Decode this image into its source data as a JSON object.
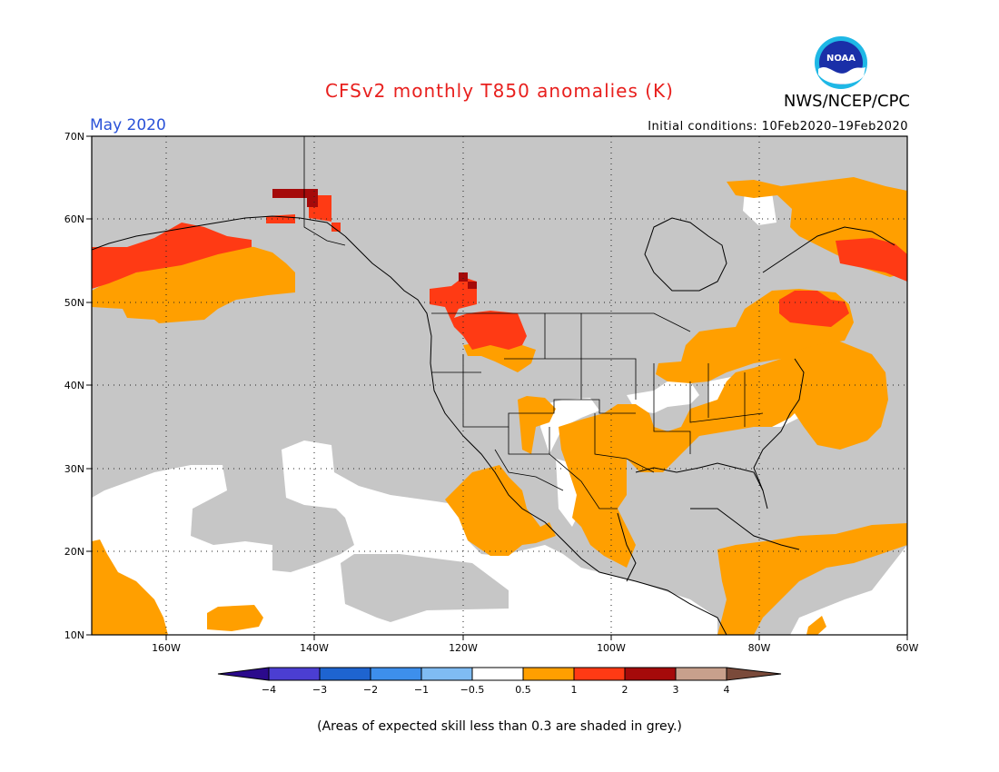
{
  "title": "CFSv2 monthly T850 anomalies (K)",
  "agency": "NWS/NCEP/CPC",
  "logo_text": "NOAA",
  "valid_month": "May 2020",
  "initial_conditions": "Initial conditions: 10Feb2020–19Feb2020",
  "footnote": "(Areas of expected skill less than 0.3 are shaded in grey.)",
  "map": {
    "lon_labels": [
      "160W",
      "140W",
      "120W",
      "100W",
      "80W",
      "60W"
    ],
    "lat_labels": [
      "70N",
      "60N",
      "50N",
      "40N",
      "30N",
      "20N",
      "10N"
    ],
    "lon_range": [
      -170,
      -60
    ],
    "lat_range": [
      10,
      70
    ],
    "grey_color": "#c6c6c6"
  },
  "colorbar": {
    "labels": [
      "−4",
      "−3",
      "−2",
      "−1",
      "−0.5",
      "0.5",
      "1",
      "2",
      "3",
      "4"
    ],
    "colors": [
      "#2b0a8c",
      "#4b3ed2",
      "#1e64d0",
      "#3d8fec",
      "#7fbcf3",
      "#ffffff",
      "#ff9f00",
      "#ff3a14",
      "#a50a0a",
      "#c8a08c",
      "#7a4a3a"
    ]
  }
}
